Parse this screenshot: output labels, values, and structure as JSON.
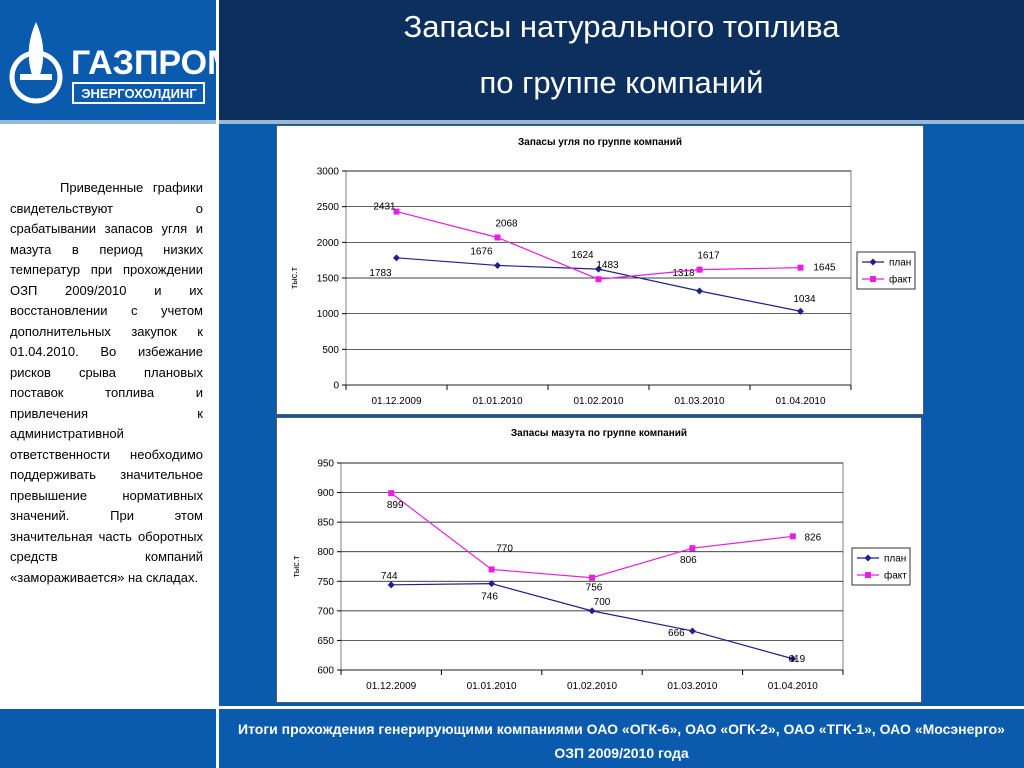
{
  "logo": {
    "brand": "ГАЗПРОМ",
    "subbrand": "ЭНЕРГОХОЛДИНГ",
    "colors": {
      "background": "#0a5aae",
      "mark": "#ffffff",
      "subbrand_bg": "#0a5aae"
    }
  },
  "header": {
    "title_line1": "Запасы натурального топлива",
    "title_line2": "по группе компаний"
  },
  "body_text": "Приведенные графики свидетельствуют о срабатывании запасов угля и мазута в период низких температур при прохождении ОЗП 2009/2010 и их восстановлении с учетом дополнительных закупок к 01.04.2010. Во избежание рисков срыва плановых поставок топлива и привлечения к административной ответственности необходимо поддерживать значительное превышение нормативных значений. При этом значительная часть оборотных средств компаний «замораживается» на складах.",
  "footer": {
    "line1": "Итоги прохождения генерирующими компаниями ОАО «ОГК-6», ОАО «ОГК-2», ОАО «ТГК-1», ОАО «Мосэнерго»",
    "line2": "ОЗП 2009/2010 года"
  },
  "chart_data": [
    {
      "type": "line",
      "title": "Запасы угля по группе компаний",
      "xlabel": "",
      "ylabel": "тыс.т",
      "categories": [
        "01.12.2009",
        "01.01.2010",
        "01.02.2010",
        "01.03.2010",
        "01.04.2010"
      ],
      "ylim": [
        0,
        3000
      ],
      "yticks": [
        0,
        500,
        1000,
        1500,
        2000,
        2500,
        3000
      ],
      "grid": true,
      "legend": "right",
      "series": [
        {
          "name": "план",
          "values": [
            1783,
            1676,
            1624,
            1318,
            1034
          ],
          "color": "#1f1f8f",
          "marker": "diamond"
        },
        {
          "name": "факт",
          "values": [
            2431,
            2068,
            1483,
            1617,
            1645
          ],
          "color": "#e81ee0",
          "marker": "square"
        }
      ]
    },
    {
      "type": "line",
      "title": "Запасы мазута по группе компаний",
      "xlabel": "",
      "ylabel": "тыс.т",
      "categories": [
        "01.12.2009",
        "01.01.2010",
        "01.02.2010",
        "01.03.2010",
        "01.04.2010"
      ],
      "ylim": [
        600,
        950
      ],
      "yticks": [
        600,
        650,
        700,
        750,
        800,
        850,
        900,
        950
      ],
      "grid": true,
      "legend": "right",
      "series": [
        {
          "name": "план",
          "values": [
            744,
            746,
            700,
            666,
            619
          ],
          "color": "#1f1f8f",
          "marker": "diamond"
        },
        {
          "name": "факт",
          "values": [
            899,
            770,
            756,
            806,
            826
          ],
          "color": "#e81ee0",
          "marker": "square"
        }
      ]
    }
  ]
}
